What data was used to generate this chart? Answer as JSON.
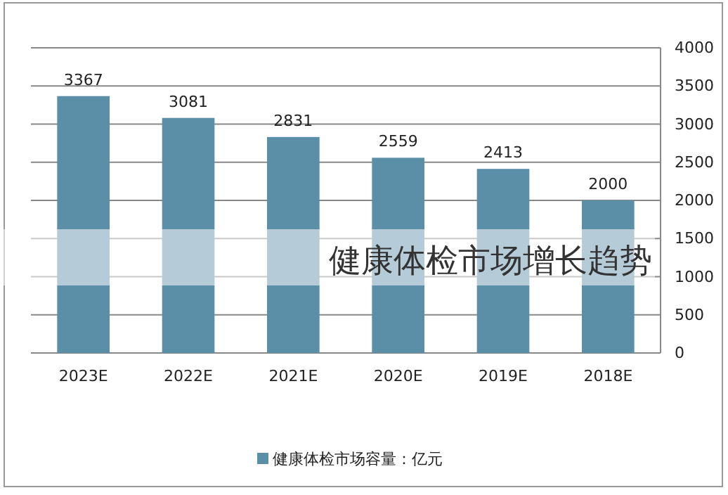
{
  "chart_data": {
    "type": "bar",
    "title": "健康体检市场增长趋势",
    "categories": [
      "2023E",
      "2022E",
      "2021E",
      "2020E",
      "2019E",
      "2018E"
    ],
    "series": [
      {
        "name": "健康体检市场容量：亿元",
        "color": "#5b8fa8",
        "values": [
          3367,
          3081,
          2831,
          2559,
          2413,
          2000
        ]
      }
    ],
    "ylim": [
      0,
      4000
    ],
    "yticks": [
      0,
      500,
      1000,
      1500,
      2000,
      2500,
      3000,
      3500,
      4000
    ],
    "grid": "y",
    "legend": "bottom",
    "data_labels": true
  }
}
